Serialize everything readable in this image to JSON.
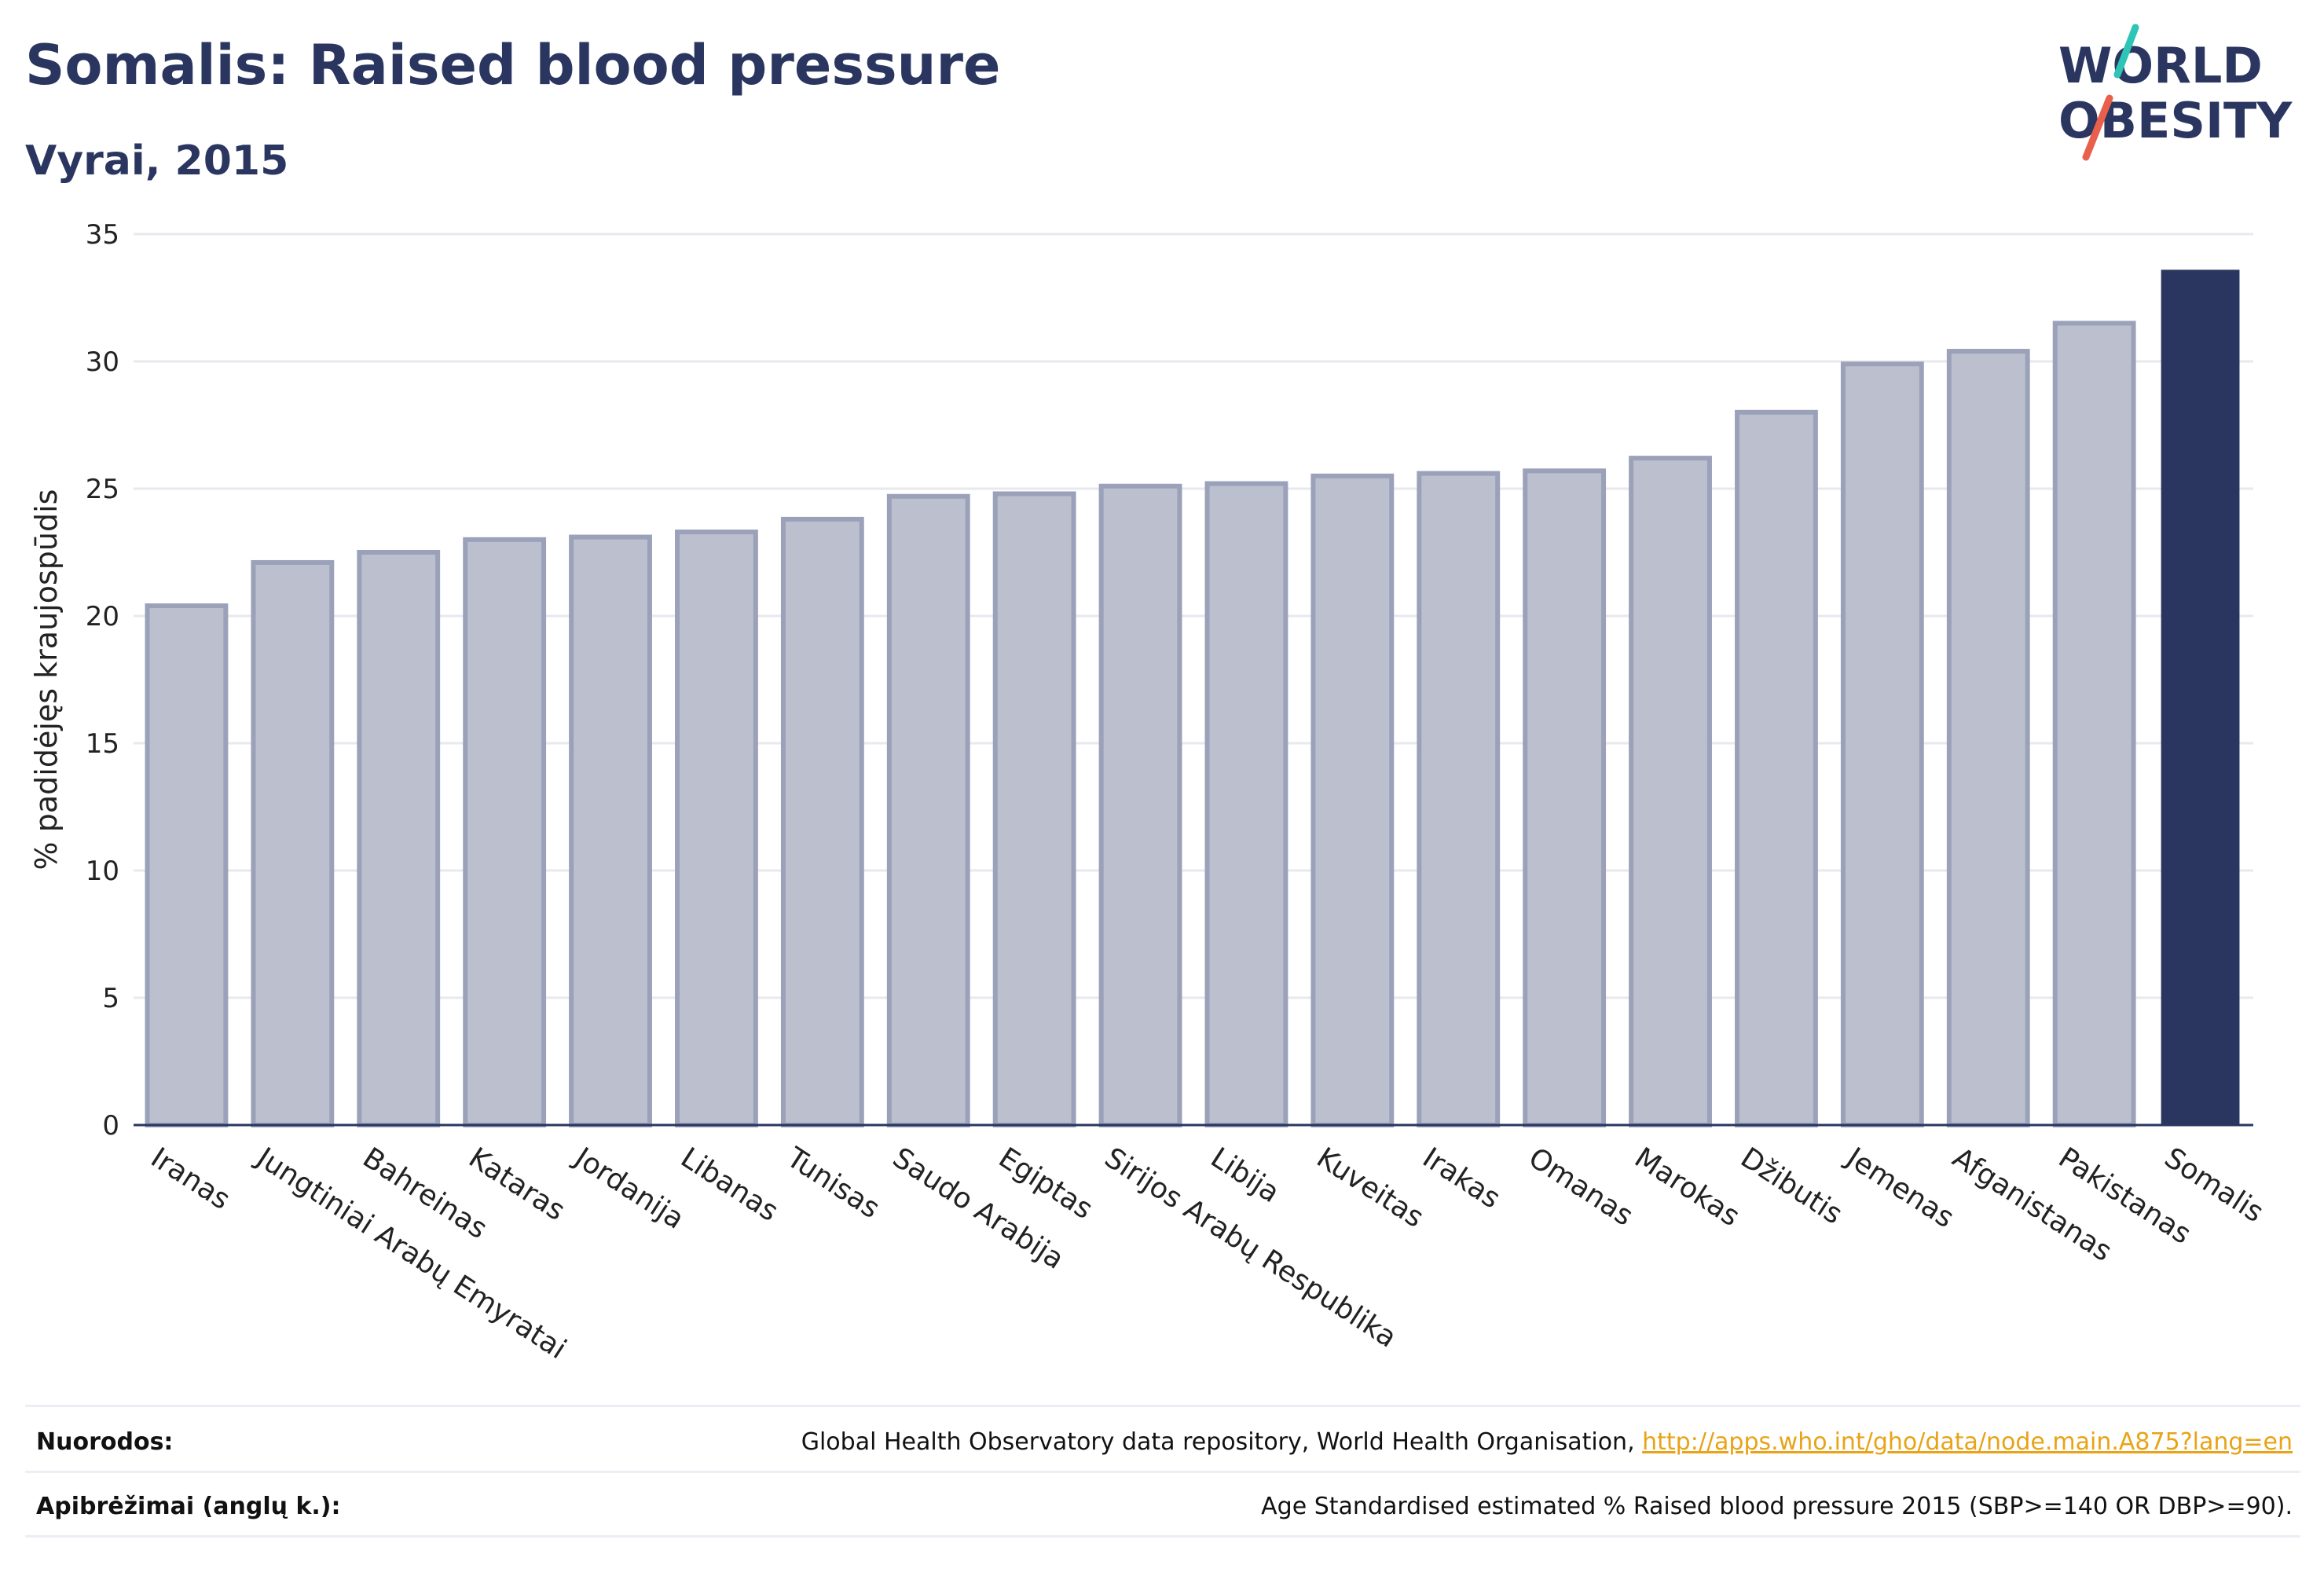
{
  "title": "Somalis: Raised blood pressure",
  "subtitle": "Vyrai, 2015",
  "logo": {
    "line1": "WORLD",
    "line2": "OBESITY",
    "accent_colors": [
      "#2ec4b6",
      "#e8604c"
    ]
  },
  "colors": {
    "bar": "#bcc0ce",
    "bar_border": "#9aa1b9",
    "highlight": "#2a3660",
    "grid": "#e8e9ef",
    "text": "#2a3660"
  },
  "chart_data": {
    "type": "bar",
    "categories": [
      "Iranas",
      "Jungtiniai Arabų Emyratai",
      "Bahreinas",
      "Kataras",
      "Jordanija",
      "Libanas",
      "Tunisas",
      "Saudo Arabija",
      "Egiptas",
      "Sirijos Arabų Respublika",
      "Libija",
      "Kuveitas",
      "Irakas",
      "Omanas",
      "Marokas",
      "Džibutis",
      "Jemenas",
      "Afganistanas",
      "Pakistanas",
      "Somalis"
    ],
    "values": [
      20.4,
      22.1,
      22.5,
      23.0,
      23.1,
      23.3,
      23.8,
      24.7,
      24.8,
      25.1,
      25.2,
      25.5,
      25.6,
      25.7,
      26.2,
      28.0,
      29.9,
      30.4,
      31.5,
      33.6
    ],
    "highlight": "Somalis",
    "ylabel": "% padidėjęs kraujospūdis",
    "xlabel": "",
    "ylim": [
      0,
      35
    ],
    "yticks": [
      0,
      5,
      10,
      15,
      20,
      25,
      30,
      35
    ],
    "grid": true
  },
  "footer": {
    "sources_label": "Nuorodos:",
    "sources_text": "Global Health Observatory data repository, World Health Organisation, ",
    "sources_link": "http://apps.who.int/gho/data/node.main.A875?lang=en",
    "definitions_label": "Apibrėžimai (anglų k.):",
    "definitions_text": "Age Standardised estimated % Raised blood pressure 2015 (SBP>=140 OR DBP>=90)."
  }
}
